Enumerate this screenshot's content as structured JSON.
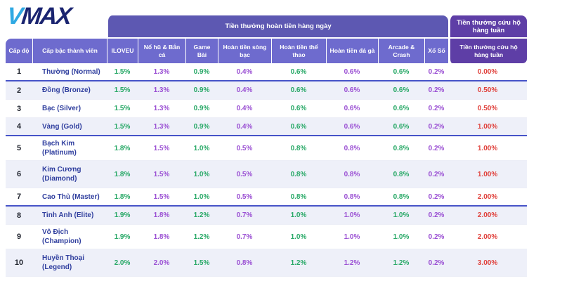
{
  "logo": {
    "part1": "V",
    "part2": "MAX"
  },
  "table": {
    "corner_headers": {
      "level": "Cấp độ",
      "rank": "Cấp bậc thành viên"
    },
    "group_headers": {
      "daily": "Tiền thưởng hoàn tiền hàng ngày",
      "weekly": "Tiền thưởng cứu hộ hàng tuần"
    },
    "column_headers": [
      "ILOVEU",
      "Nổ hũ & Bắn cá",
      "Game Bài",
      "Hoàn tiền sòng bạc",
      "Hoàn tiền thể thao",
      "Hoàn tiền đá gà",
      "Arcade & Crash",
      "Xổ Số",
      "Tiền thưởng cứu hộ hàng tuần"
    ],
    "rows": [
      {
        "level": "1",
        "rank": "Thường (Normal)",
        "values": [
          "1.5%",
          "1.3%",
          "0.9%",
          "0.4%",
          "0.6%",
          "0.6%",
          "0.6%",
          "0.2%",
          "0.00%"
        ]
      },
      {
        "level": "2",
        "rank": "Đồng (Bronze)",
        "values": [
          "1.5%",
          "1.3%",
          "0.9%",
          "0.4%",
          "0.6%",
          "0.6%",
          "0.6%",
          "0.2%",
          "0.50%"
        ]
      },
      {
        "level": "3",
        "rank": "Bạc (Silver)",
        "values": [
          "1.5%",
          "1.3%",
          "0.9%",
          "0.4%",
          "0.6%",
          "0.6%",
          "0.6%",
          "0.2%",
          "0.50%"
        ]
      },
      {
        "level": "4",
        "rank": "Vàng (Gold)",
        "values": [
          "1.5%",
          "1.3%",
          "0.9%",
          "0.4%",
          "0.6%",
          "0.6%",
          "0.6%",
          "0.2%",
          "1.00%"
        ]
      },
      {
        "level": "5",
        "rank": "Bạch Kim (Platinum)",
        "values": [
          "1.8%",
          "1.5%",
          "1.0%",
          "0.5%",
          "0.8%",
          "0.8%",
          "0.8%",
          "0.2%",
          "1.00%"
        ]
      },
      {
        "level": "6",
        "rank": [
          "Kim Cương",
          "(Diamond)"
        ],
        "values": [
          "1.8%",
          "1.5%",
          "1.0%",
          "0.5%",
          "0.8%",
          "0.8%",
          "0.8%",
          "0.2%",
          "1.00%"
        ]
      },
      {
        "level": "7",
        "rank": "Cao Thủ (Master)",
        "values": [
          "1.8%",
          "1.5%",
          "1.0%",
          "0.5%",
          "0.8%",
          "0.8%",
          "0.8%",
          "0.2%",
          "2.00%"
        ]
      },
      {
        "level": "8",
        "rank": "Tinh Anh (Elite)",
        "values": [
          "1.9%",
          "1.8%",
          "1.2%",
          "0.7%",
          "1.0%",
          "1.0%",
          "1.0%",
          "0.2%",
          "2.00%"
        ]
      },
      {
        "level": "9",
        "rank": "Vô Địch (Champion)",
        "values": [
          "1.9%",
          "1.8%",
          "1.2%",
          "0.7%",
          "1.0%",
          "1.0%",
          "1.0%",
          "0.2%",
          "2.00%"
        ]
      },
      {
        "level": "10",
        "rank": [
          "Huyền Thoại",
          "(Legend)"
        ],
        "values": [
          "2.0%",
          "2.0%",
          "1.5%",
          "0.8%",
          "1.2%",
          "1.2%",
          "1.2%",
          "0.2%",
          "3.00%"
        ]
      }
    ],
    "group_separator_after_row_indexes": [
      0,
      3,
      6
    ],
    "tall_row_indexes": [
      5,
      9
    ]
  },
  "colors": {
    "logo_v": "#2fa9e3",
    "logo_max": "#1a2470",
    "daily_header_bg": "#5d58b2",
    "weekly_header_bg": "#5e3ea6",
    "column_header_bg": "#6e6bce",
    "rank_text": "#2f3e9e",
    "green": "#27a866",
    "purple": "#9a4fd3",
    "red": "#e0413c",
    "separator": "#4653c8",
    "row_alt_bg": "#eef0f9"
  }
}
